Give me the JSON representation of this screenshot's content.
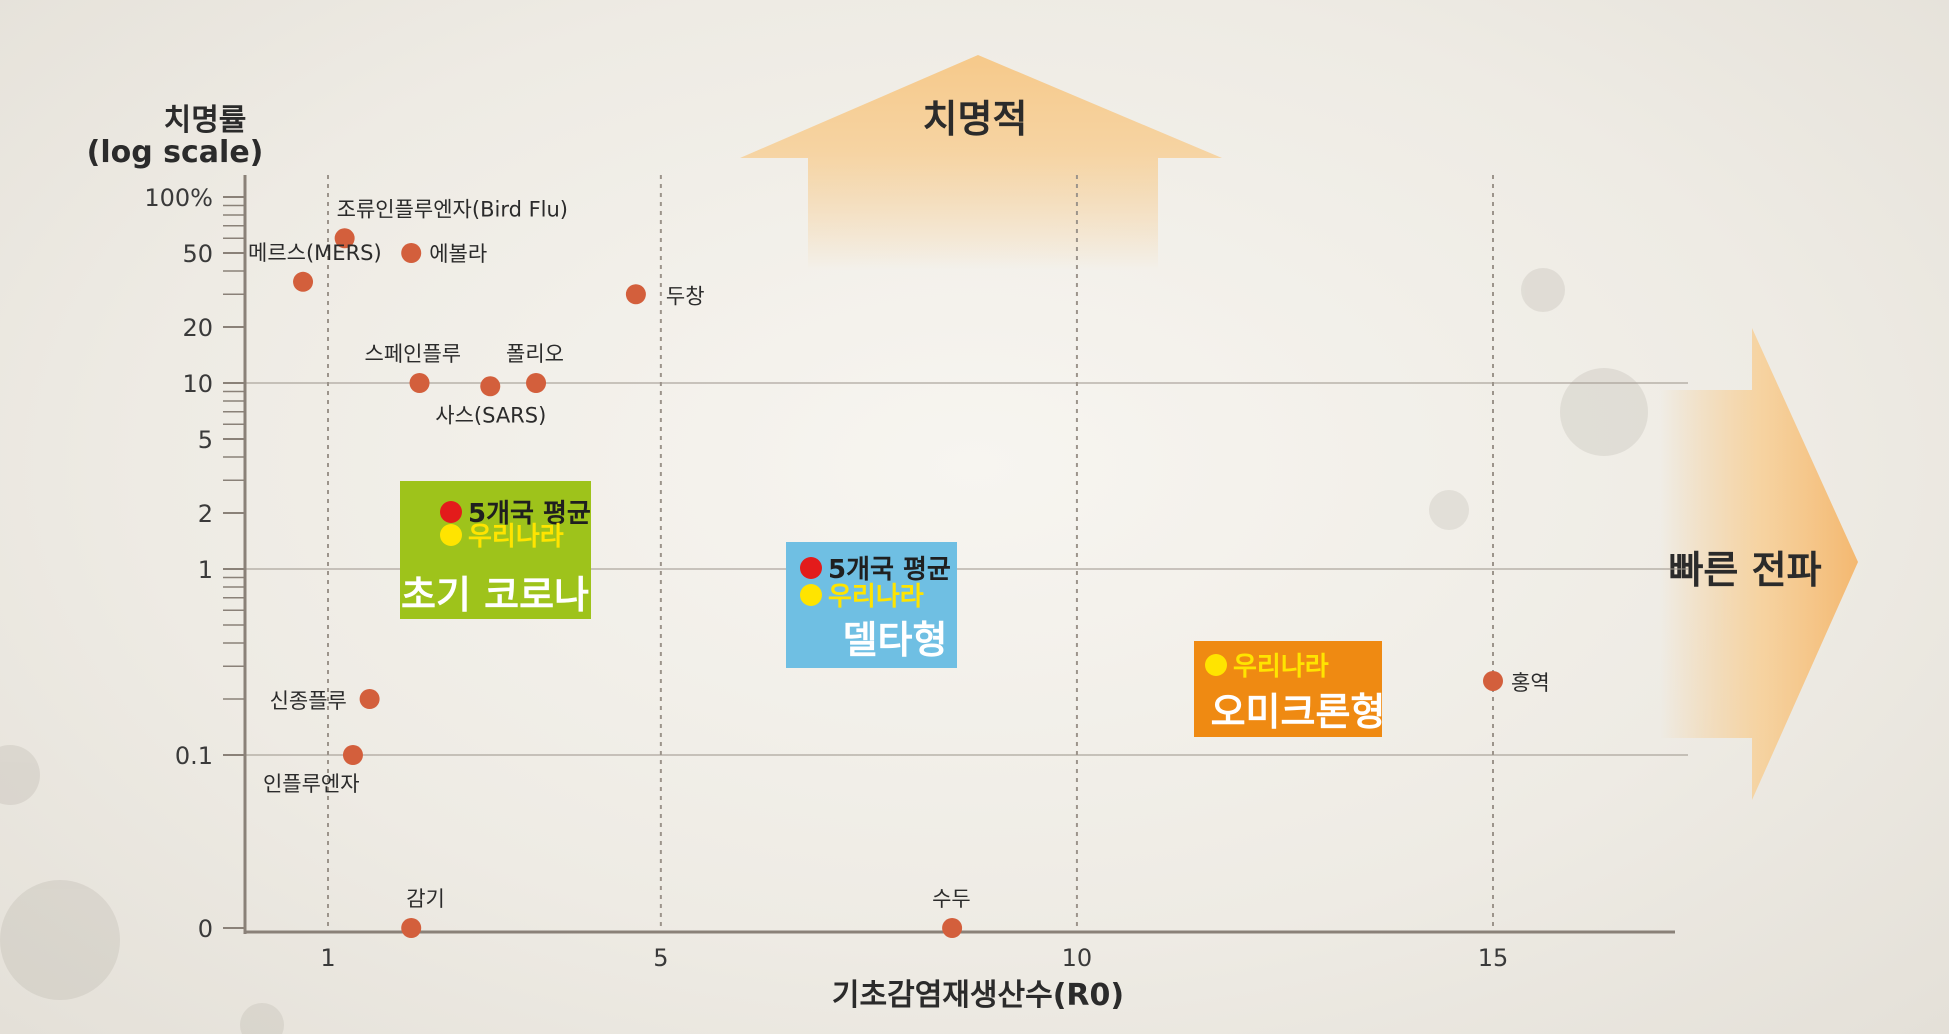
{
  "colors": {
    "point": "#d35f3c",
    "axis": "#8a8178",
    "grid": "#9c948b",
    "arrow": "#f6c98a",
    "early_box": "#9ec31b",
    "delta_box": "#6fbfe3",
    "omicron_box": "#ef8a12",
    "avg_dot": "#e31b1b",
    "korea_dot": "#ffe400"
  },
  "chart_data": {
    "type": "scatter",
    "xlabel": "기초감염재생산수(R0)",
    "ylabel_line1": "치명률",
    "ylabel_line2": "(log scale)",
    "x_scale": "linear",
    "y_scale": "log",
    "xlim": [
      0,
      17
    ],
    "y_ticks": [
      {
        "value": 100,
        "label": "100%"
      },
      {
        "value": 50,
        "label": "50"
      },
      {
        "value": 20,
        "label": "20"
      },
      {
        "value": 10,
        "label": "10"
      },
      {
        "value": 5,
        "label": "5"
      },
      {
        "value": 2,
        "label": "2"
      },
      {
        "value": 1,
        "label": "1"
      },
      {
        "value": 0.1,
        "label": "0.1"
      },
      {
        "value": 0,
        "label": "0"
      }
    ],
    "x_ticks": [
      {
        "value": 1,
        "label": "1"
      },
      {
        "value": 5,
        "label": "5"
      },
      {
        "value": 10,
        "label": "10"
      },
      {
        "value": 15,
        "label": "15"
      }
    ],
    "points": [
      {
        "name": "조류인플루엔자(Bird Flu)",
        "x": 1.2,
        "y": 60
      },
      {
        "name": "메르스(MERS)",
        "x": 0.7,
        "y": 35
      },
      {
        "name": "에볼라",
        "x": 2.0,
        "y": 50
      },
      {
        "name": "두창",
        "x": 4.7,
        "y": 30
      },
      {
        "name": "스페인플루",
        "x": 2.1,
        "y": 10
      },
      {
        "name": "사스(SARS)",
        "x": 2.95,
        "y": 9.6
      },
      {
        "name": "폴리오",
        "x": 3.5,
        "y": 10
      },
      {
        "name": "신종플루",
        "x": 1.5,
        "y": 0.2
      },
      {
        "name": "인플루엔자",
        "x": 1.3,
        "y": 0.1
      },
      {
        "name": "감기",
        "x": 2.0,
        "y": 0
      },
      {
        "name": "수두",
        "x": 8.5,
        "y": 0
      },
      {
        "name": "홍역",
        "x": 15.0,
        "y": 0.25
      }
    ]
  },
  "arrows": {
    "up_label": "치명적",
    "right_label": "빠른 전파"
  },
  "boxes": {
    "early": {
      "avg_label": "5개국 평균",
      "korea_label": "우리나라",
      "title": "초기 코로나"
    },
    "delta": {
      "avg_label": "5개국 평균",
      "korea_label": "우리나라",
      "title": "델타형"
    },
    "omicron": {
      "korea_label": "우리나라",
      "title": "오미크론형"
    }
  }
}
